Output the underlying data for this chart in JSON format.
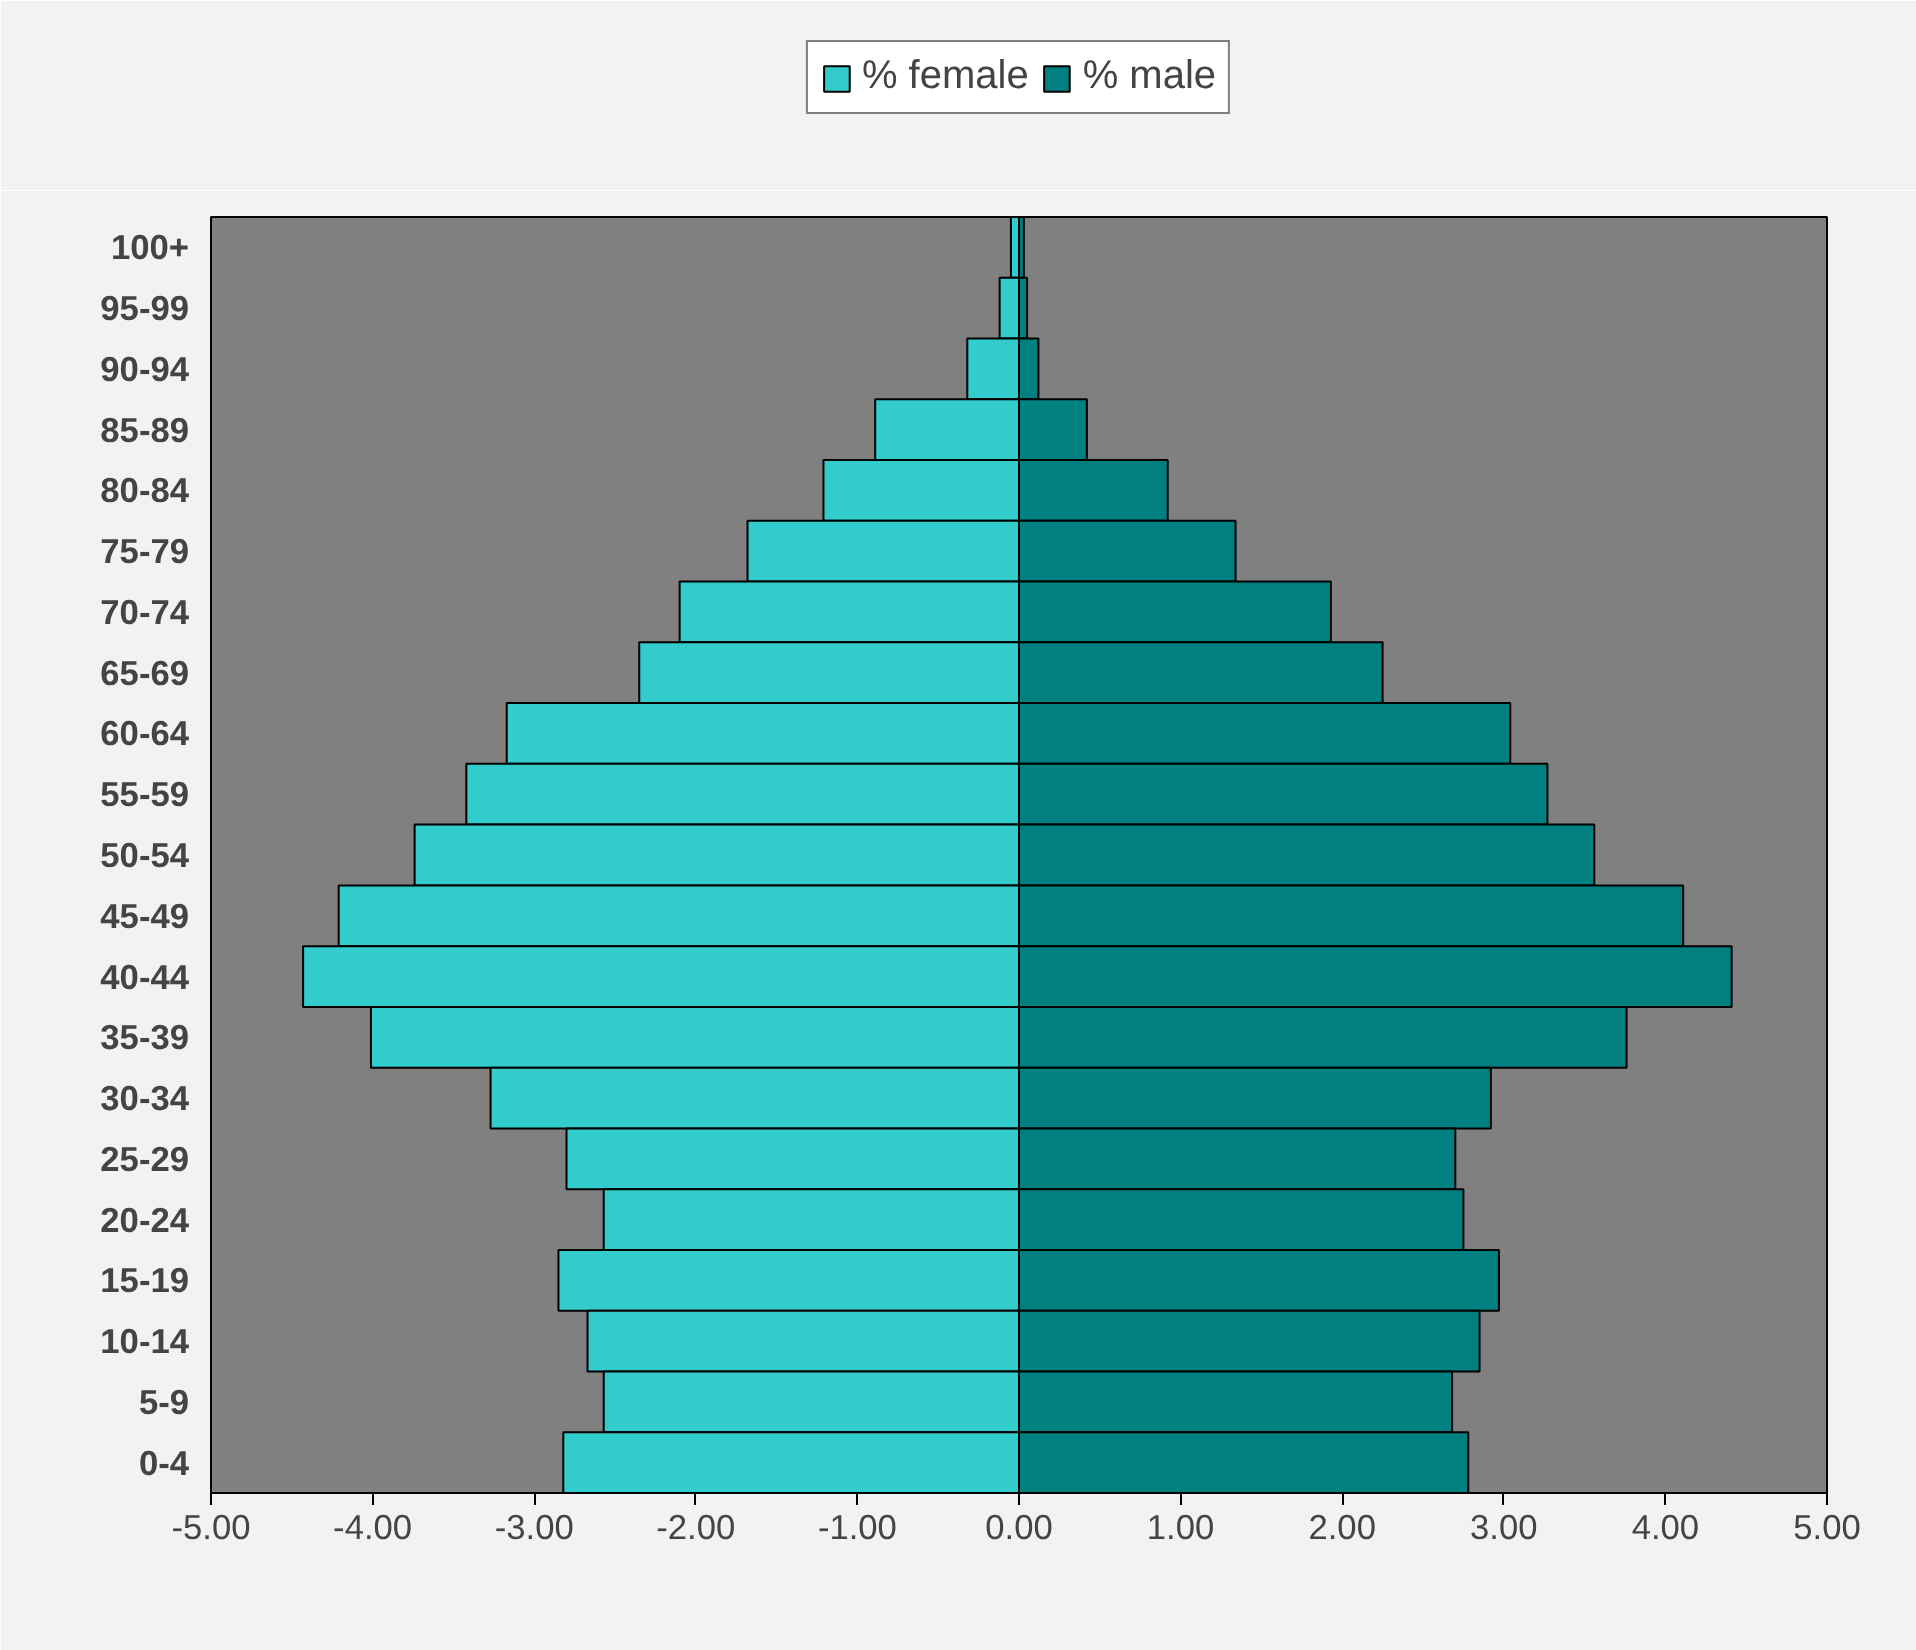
{
  "chart_data": {
    "type": "bar",
    "orientation": "horizontal",
    "legend": "top",
    "stacked": true,
    "categories": [
      "100+",
      "95-99",
      "90-94",
      "85-89",
      "80-84",
      "75-79",
      "70-74",
      "65-69",
      "60-64",
      "55-59",
      "50-54",
      "45-49",
      "40-44",
      "35-39",
      "30-34",
      "25-29",
      "20-24",
      "15-19",
      "10-14",
      "5-9",
      "0-4"
    ],
    "series": [
      {
        "name": "% female",
        "color": "#33cccc",
        "values": [
          -0.05,
          -0.12,
          -0.32,
          -0.89,
          -1.21,
          -1.68,
          -2.1,
          -2.35,
          -3.17,
          -3.42,
          -3.74,
          -4.21,
          -4.43,
          -4.01,
          -3.27,
          -2.8,
          -2.57,
          -2.85,
          -2.67,
          -2.57,
          -2.82
        ]
      },
      {
        "name": "% male",
        "color": "#008080",
        "values": [
          0.03,
          0.05,
          0.12,
          0.42,
          0.92,
          1.34,
          1.93,
          2.25,
          3.04,
          3.27,
          3.56,
          4.11,
          4.41,
          3.76,
          2.92,
          2.7,
          2.75,
          2.97,
          2.85,
          2.68,
          2.78
        ]
      }
    ],
    "xlim": [
      -5,
      5
    ],
    "xticks": [
      {
        "value": -5,
        "label": "-5.00"
      },
      {
        "value": -4,
        "label": "-4.00"
      },
      {
        "value": -3,
        "label": "-3.00"
      },
      {
        "value": -2,
        "label": "-2.00"
      },
      {
        "value": -1,
        "label": "-1.00"
      },
      {
        "value": 0,
        "label": "0.00"
      },
      {
        "value": 1,
        "label": "1.00"
      },
      {
        "value": 2,
        "label": "2.00"
      },
      {
        "value": 3,
        "label": "3.00"
      },
      {
        "value": 4,
        "label": "4.00"
      },
      {
        "value": 5,
        "label": "5.00"
      }
    ],
    "grid": false
  }
}
